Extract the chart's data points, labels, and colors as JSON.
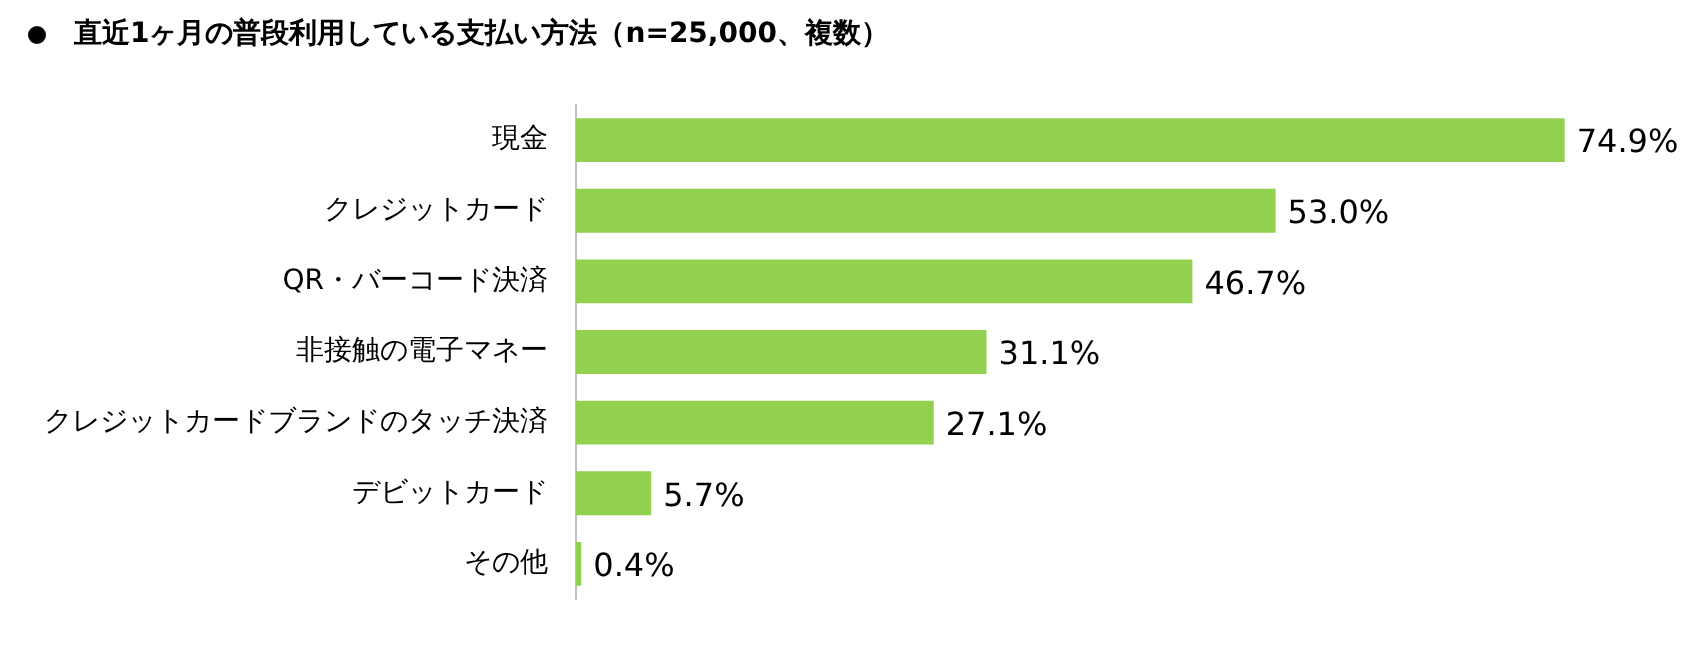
{
  "chart_data": {
    "type": "bar",
    "orientation": "horizontal",
    "title": "直近1ヶ月の普段利用している支払い方法（n=25,000、複数）",
    "categories": [
      "現金",
      "クレジットカード",
      "QR・バーコード決済",
      "非接触の電子マネー",
      "クレジットカードブランドのタッチ決済",
      "デビットカード",
      "その他"
    ],
    "values": [
      74.9,
      53.0,
      46.7,
      31.1,
      27.1,
      5.7,
      0.4
    ],
    "value_labels": [
      "74.9%",
      "53.0%",
      "46.7%",
      "31.1%",
      "27.1%",
      "5.7%",
      "0.4%"
    ],
    "color": "#92d050",
    "tick_labels": "y",
    "legend": false
  }
}
